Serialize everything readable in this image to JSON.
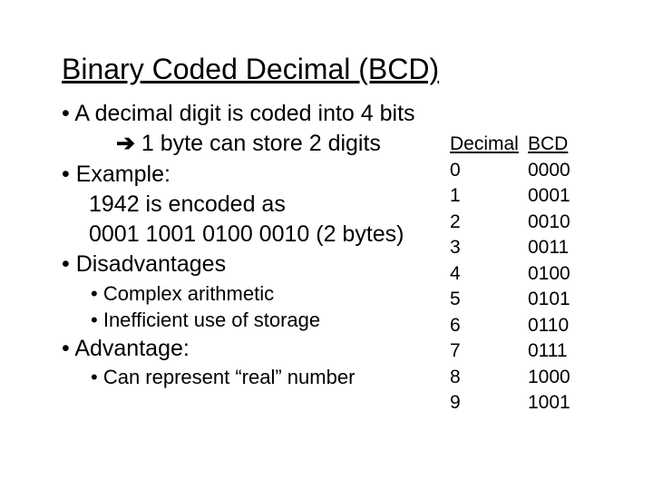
{
  "title": "Binary Coded Decimal (BCD)",
  "arrow_glyph": "è",
  "bullets": {
    "l1": "A decimal digit is coded into 4 bits",
    "l1b": " 1 byte can store 2 digits",
    "l2": "Example:",
    "l2a": "1942 is encoded as",
    "l2b": "0001 1001 0100 0010 (2 bytes)",
    "l3": "Disadvantages",
    "l3a": "Complex arithmetic",
    "l3b": "Inefficient use of storage",
    "l4": "Advantage:",
    "l4a": "Can represent “real” number"
  },
  "table": {
    "header_dec": "Decimal",
    "header_bcd": "BCD",
    "rows": [
      {
        "d": "0",
        "b": "0000"
      },
      {
        "d": "1",
        "b": "0001"
      },
      {
        "d": "2",
        "b": "0010"
      },
      {
        "d": "3",
        "b": "0011"
      },
      {
        "d": "4",
        "b": "0100"
      },
      {
        "d": "5",
        "b": "0101"
      },
      {
        "d": "6",
        "b": "0110"
      },
      {
        "d": "7",
        "b": "0111"
      },
      {
        "d": "8",
        "b": "1000"
      },
      {
        "d": "9",
        "b": "1001"
      }
    ]
  }
}
